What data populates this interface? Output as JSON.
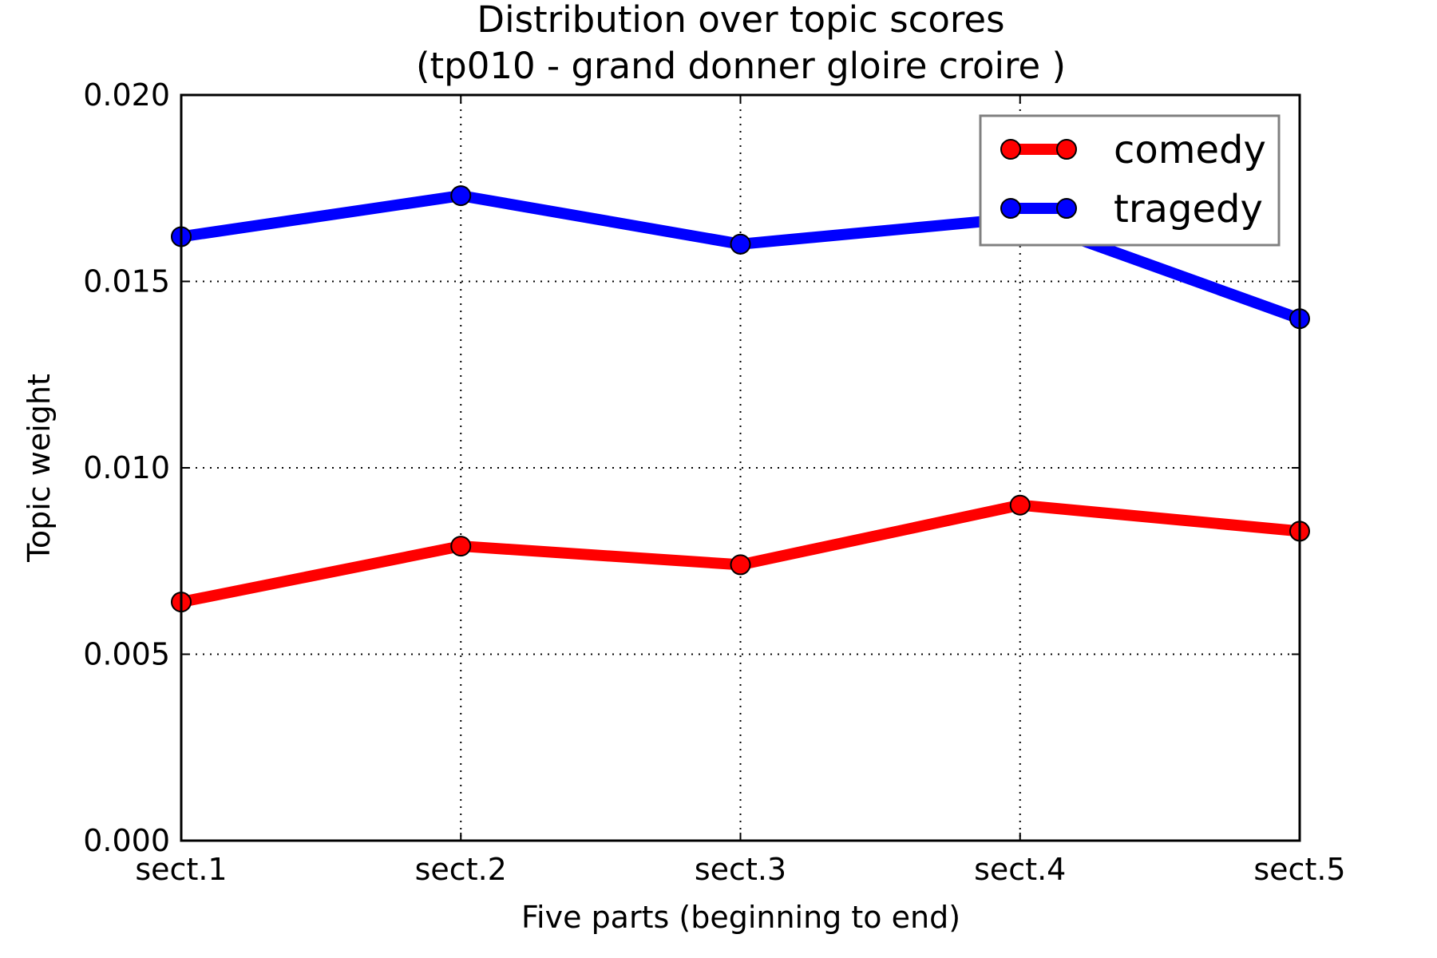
{
  "chart_data": {
    "type": "line",
    "title": "Distribution over topic scores",
    "subtitle": "(tp010 - grand donner gloire croire )",
    "xlabel": "Five parts (beginning to end)",
    "ylabel": "Topic weight",
    "categories": [
      "sect.1",
      "sect.2",
      "sect.3",
      "sect.4",
      "sect.5"
    ],
    "ylim": [
      0,
      0.02
    ],
    "yticks": [
      {
        "value": 0.0,
        "label": "0.000"
      },
      {
        "value": 0.005,
        "label": "0.005"
      },
      {
        "value": 0.01,
        "label": "0.010"
      },
      {
        "value": 0.015,
        "label": "0.015"
      },
      {
        "value": 0.02,
        "label": "0.020"
      }
    ],
    "grid": true,
    "legend_position": "top-right",
    "series": [
      {
        "name": "comedy",
        "color": "#ff0000",
        "values": [
          0.0064,
          0.0079,
          0.0074,
          0.009,
          0.0083
        ]
      },
      {
        "name": "tragedy",
        "color": "#0000ff",
        "values": [
          0.0162,
          0.0173,
          0.016,
          0.0167,
          0.014
        ]
      }
    ]
  }
}
